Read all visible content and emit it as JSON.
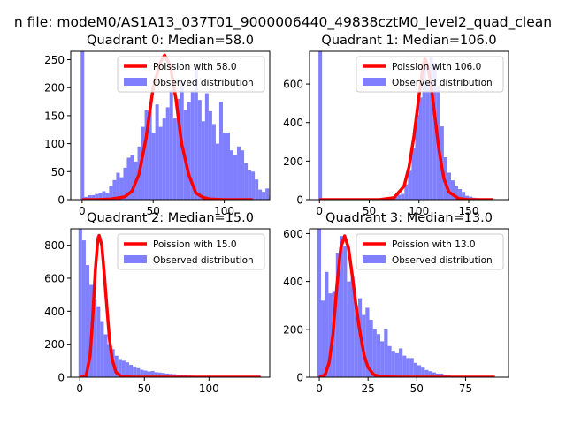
{
  "figure": {
    "suptitle": "n file: modeM0/AS1A13_037T01_9000006440_49838cztM0_level2_quad_clean"
  },
  "chart_data": [
    {
      "type": "bar",
      "title": "Quadrant 0: Median=58.0",
      "xlim": [
        -8,
        132
      ],
      "ylim": [
        0,
        265
      ],
      "xticks": [
        0,
        50,
        100
      ],
      "yticks": [
        0,
        50,
        100,
        150,
        200,
        250
      ],
      "bin_start": -1,
      "bin_width": 2.5,
      "values": [
        265,
        5,
        8,
        8,
        10,
        12,
        15,
        12,
        25,
        35,
        48,
        40,
        57,
        75,
        80,
        68,
        95,
        130,
        160,
        158,
        120,
        170,
        130,
        145,
        165,
        195,
        145,
        180,
        210,
        160,
        175,
        195,
        240,
        178,
        140,
        190,
        158,
        135,
        100,
        175,
        120,
        120,
        88,
        80,
        95,
        88,
        65,
        52,
        50,
        36,
        18,
        14,
        20,
        8
      ],
      "line": {
        "name": "Poission with 58.0",
        "x": [
          0,
          10,
          20,
          30,
          35,
          40,
          45,
          50,
          55,
          58,
          62,
          66,
          70,
          75,
          80,
          85,
          90,
          100,
          110,
          120
        ],
        "y": [
          0,
          0,
          1,
          5,
          15,
          45,
          110,
          200,
          245,
          258,
          240,
          180,
          100,
          45,
          12,
          4,
          1,
          0,
          0,
          0
        ]
      },
      "bars_legend": "Observed distribution",
      "legend_position": "upper right"
    },
    {
      "type": "bar",
      "title": "Quadrant 1: Median=106.0",
      "xlim": [
        -10,
        190
      ],
      "ylim": [
        0,
        770
      ],
      "xticks": [
        0,
        50,
        100,
        150
      ],
      "yticks": [
        0,
        200,
        400,
        600
      ],
      "bin_start": -1,
      "bin_width": 3.6,
      "values": [
        770,
        0,
        0,
        0,
        0,
        0,
        0,
        0,
        0,
        0,
        0,
        0,
        0,
        0,
        0,
        0,
        0,
        0,
        0,
        5,
        10,
        15,
        25,
        30,
        80,
        150,
        270,
        440,
        530,
        690,
        610,
        740,
        710,
        580,
        380,
        220,
        140,
        100,
        70,
        55,
        40,
        20,
        15,
        10,
        8,
        5,
        3,
        2,
        1,
        1
      ],
      "line": {
        "name": "Poission with 106.0",
        "x": [
          0,
          60,
          75,
          85,
          90,
          95,
          100,
          104,
          106,
          108,
          112,
          116,
          120,
          125,
          130,
          140,
          150,
          175
        ],
        "y": [
          0,
          0,
          10,
          70,
          170,
          330,
          540,
          690,
          730,
          710,
          600,
          430,
          260,
          110,
          40,
          5,
          0,
          0
        ]
      },
      "bars_legend": "Observed distribution",
      "legend_position": "upper right"
    },
    {
      "type": "bar",
      "title": "Quadrant 2: Median=15.0",
      "xlim": [
        -7,
        147
      ],
      "ylim": [
        0,
        900
      ],
      "xticks": [
        0,
        50,
        100
      ],
      "yticks": [
        0,
        200,
        400,
        600,
        800
      ],
      "bin_start": -1,
      "bin_width": 2.8,
      "values": [
        900,
        830,
        680,
        560,
        470,
        430,
        340,
        260,
        200,
        170,
        130,
        110,
        100,
        90,
        75,
        65,
        55,
        45,
        40,
        35,
        38,
        30,
        28,
        25,
        22,
        20,
        18,
        15,
        14,
        12,
        10,
        9,
        8,
        7,
        6,
        5,
        4,
        3,
        3,
        2,
        2,
        1,
        1,
        1,
        0,
        0,
        0,
        0,
        0,
        0
      ],
      "line": {
        "name": "Poission with 15.0",
        "x": [
          0,
          5,
          8,
          10,
          12,
          14,
          15,
          17,
          19,
          21,
          23,
          25,
          28,
          32,
          40,
          60,
          100,
          140
        ],
        "y": [
          0,
          10,
          130,
          360,
          650,
          840,
          860,
          800,
          620,
          420,
          230,
          110,
          30,
          5,
          0,
          0,
          0,
          0
        ]
      },
      "bars_legend": "Observed distribution",
      "legend_position": "upper right"
    },
    {
      "type": "bar",
      "title": "Quadrant 3: Median=13.0",
      "xlim": [
        -5,
        97
      ],
      "ylim": [
        0,
        620
      ],
      "xticks": [
        0,
        25,
        50,
        75
      ],
      "yticks": [
        0,
        200,
        400,
        600
      ],
      "bin_start": -1,
      "bin_width": 1.9,
      "values": [
        620,
        320,
        440,
        350,
        360,
        520,
        590,
        550,
        400,
        420,
        300,
        330,
        260,
        290,
        240,
        200,
        180,
        150,
        200,
        130,
        110,
        100,
        120,
        90,
        80,
        80,
        60,
        50,
        40,
        30,
        25,
        20,
        15,
        15,
        10,
        8,
        5,
        4,
        3,
        2,
        2,
        1,
        1,
        1,
        0,
        0,
        0,
        0,
        0,
        0
      ],
      "line": {
        "name": "Poission with 13.0",
        "x": [
          0,
          3,
          5,
          7,
          9,
          11,
          13,
          15,
          17,
          19,
          21,
          23,
          25,
          28,
          32,
          40,
          60,
          90
        ],
        "y": [
          0,
          10,
          60,
          180,
          380,
          540,
          590,
          540,
          420,
          290,
          180,
          90,
          40,
          10,
          2,
          0,
          0,
          0
        ]
      },
      "bars_legend": "Observed distribution",
      "legend_position": "upper right"
    }
  ],
  "colors": {
    "bars": "#8080ff",
    "line": "#ff0000",
    "axes": "#000000",
    "background": "#ffffff"
  }
}
